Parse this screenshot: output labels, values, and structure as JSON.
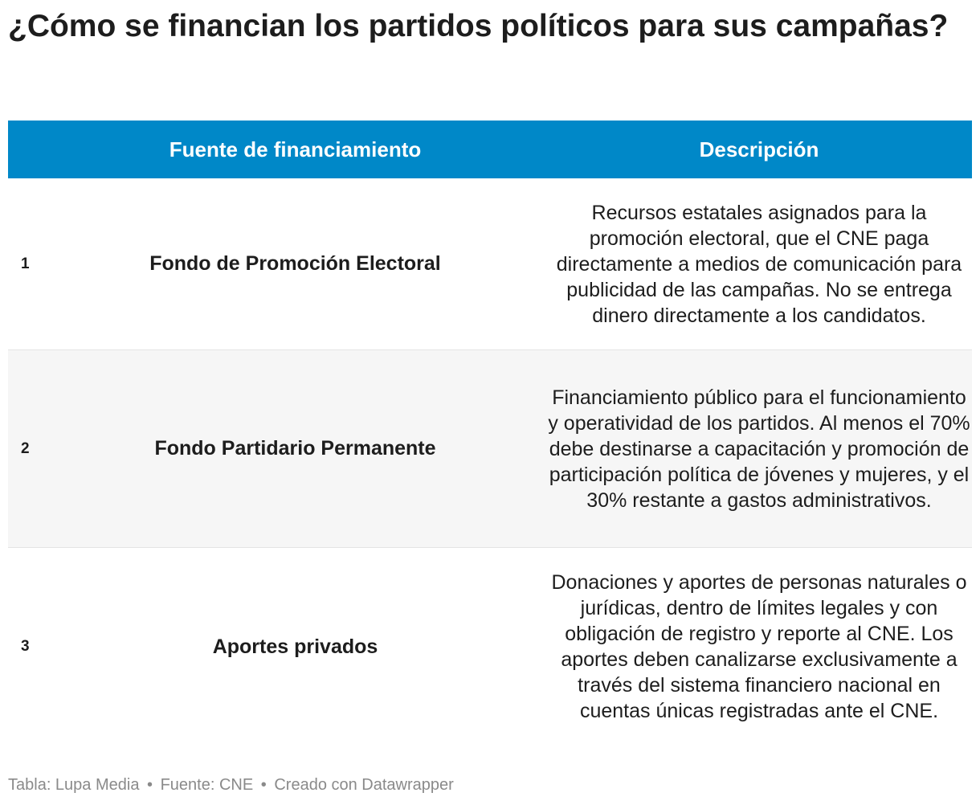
{
  "title": "¿Cómo se financian los partidos políticos para sus campañas?",
  "table": {
    "columns": [
      "",
      "Fuente de financiamiento",
      "Descripción"
    ],
    "rows": [
      {
        "num": "1",
        "source": "Fondo de Promoción Electoral",
        "description": "Recursos estatales asignados para la promoción electoral, que el CNE paga directamente a medios de comunicación para publicidad de las campañas. No se entrega dinero directamente a los candidatos."
      },
      {
        "num": "2",
        "source": "Fondo Partidario Permanente",
        "description": "Financiamiento público para el funcionamiento y operatividad de los partidos. Al menos el 70% debe destinarse a capacitación y promoción de participación política de jóvenes y mujeres, y el 30% restante a gastos administrativos."
      },
      {
        "num": "3",
        "source": "Aportes privados",
        "description": "Donaciones y aportes de personas naturales o jurídicas, dentro de límites legales y con obligación de registro y reporte al CNE. Los aportes deben canalizarse exclusivamente a través del sistema financiero nacional en cuentas únicas registradas ante el CNE."
      }
    ]
  },
  "footer": {
    "table_credit": "Tabla: Lupa Media",
    "source": "Fuente: CNE",
    "made_with": "Creado con Datawrapper",
    "separator": "•"
  },
  "colors": {
    "header_bg": "#0088c8",
    "header_text": "#ffffff",
    "alt_row_bg": "#f6f6f6",
    "footer_text": "#8a8a8a"
  }
}
